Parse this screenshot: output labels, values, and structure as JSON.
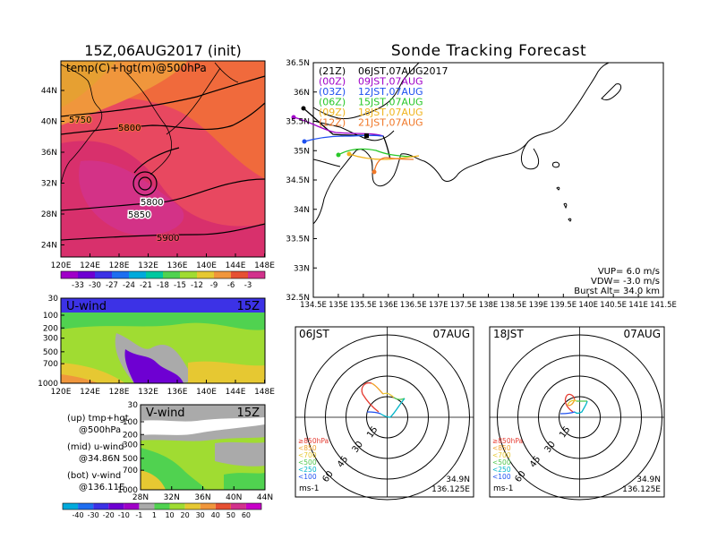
{
  "left_panel": {
    "title": "15Z,06AUG2017 (init)",
    "map_label": "temp(C)+hgt(m)@500hPa",
    "lat_ticks": [
      "44N",
      "40N",
      "36N",
      "32N",
      "28N",
      "24N"
    ],
    "lon_ticks": [
      "120E",
      "124E",
      "128E",
      "132E",
      "136E",
      "140E",
      "144E",
      "148E"
    ],
    "contour_labels": [
      "5750",
      "5800",
      "5800",
      "5850",
      "5900"
    ],
    "temp_colorbar": [
      "-33",
      "-30",
      "-27",
      "-24",
      "-21",
      "-18",
      "-15",
      "-12",
      "-9",
      "-6",
      "-3"
    ],
    "temp_colors": [
      "#a000c8",
      "#6e00d2",
      "#3c32e6",
      "#1e6ef0",
      "#00aadc",
      "#00c8a0",
      "#50d250",
      "#a0dc32",
      "#e6c832",
      "#f0963c",
      "#e65032",
      "#d2328c"
    ]
  },
  "uwind_panel": {
    "label": "U-wind",
    "time": "15Z",
    "p_ticks": [
      "30",
      "100",
      "200",
      "300",
      "500",
      "700",
      "1000"
    ],
    "lon_ticks": [
      "120E",
      "124E",
      "128E",
      "132E",
      "136E",
      "140E",
      "144E",
      "148E"
    ]
  },
  "vwind_panel": {
    "label": "V-wind",
    "time": "15Z",
    "p_ticks": [
      "30",
      "100",
      "200",
      "300",
      "500",
      "700",
      "1000"
    ],
    "lat_ticks": [
      "28N",
      "32N",
      "36N",
      "40N",
      "44N"
    ]
  },
  "legend_text": {
    "up1": "(up)  tmp+hgt",
    "up2": "@500hPa",
    "mid1": "(mid) u-wind",
    "mid2": "@34.86N",
    "bot1": "(bot) v-wind",
    "bot2": "@136.11E"
  },
  "wind_colorbar": {
    "labels": [
      "-40",
      "-30",
      "-20",
      "-10",
      "-1",
      "1",
      "10",
      "20",
      "30",
      "40",
      "50",
      "60"
    ],
    "colors": [
      "#00aadc",
      "#1e6ef0",
      "#3c32e6",
      "#6e00d2",
      "#a000c8",
      "#aaaaaa",
      "#50d250",
      "#a0dc32",
      "#e6c832",
      "#f0963c",
      "#e65032",
      "#d2328c",
      "#c800c8"
    ]
  },
  "track_panel": {
    "title": "Sonde Tracking Forecast",
    "lat_ticks": [
      "36.5N",
      "36N",
      "35.5N",
      "35N",
      "34.5N",
      "34N",
      "33.5N",
      "33N",
      "32.5N"
    ],
    "lon_ticks": [
      "134.5E",
      "135E",
      "135.5E",
      "136E",
      "136.5E",
      "137E",
      "137.5E",
      "138E",
      "138.5E",
      "139E",
      "139.5E",
      "140E",
      "140.5E",
      "141E",
      "141.5E"
    ],
    "launches": [
      {
        "code": "(21Z)",
        "time": "06JST,07AUG2017",
        "color": "#000000"
      },
      {
        "code": "(00Z)",
        "time": "09JST,07AUG",
        "color": "#a000c8"
      },
      {
        "code": "(03Z)",
        "time": "12JST,07AUG",
        "color": "#1e50f0"
      },
      {
        "code": "(06Z)",
        "time": "15JST,07AUG",
        "color": "#28c828"
      },
      {
        "code": "(09Z)",
        "time": "18JST,07AUG",
        "color": "#f0b41e"
      },
      {
        "code": "(12Z)",
        "time": "21JST,07AUG",
        "color": "#f07828"
      }
    ],
    "vup": "VUP=  6.0 m/s",
    "vdw": "VDW= -3.0 m/s",
    "burst": "Burst Alt= 34.0 km"
  },
  "hodographs": [
    {
      "time": "06JST",
      "date": "07AUG",
      "lat": "34.9N",
      "lon": "136.125E",
      "unit": "ms-1",
      "ring_labels": [
        "15",
        "30",
        "45",
        "60"
      ]
    },
    {
      "time": "18JST",
      "date": "07AUG",
      "lat": "34.9N",
      "lon": "136.125E",
      "unit": "ms-1",
      "ring_labels": [
        "15",
        "30",
        "45",
        "60"
      ]
    }
  ],
  "pressure_legend": [
    {
      "label": "≥850hPa",
      "color": "#e63c32"
    },
    {
      "label": "<850",
      "color": "#f0a028"
    },
    {
      "label": "<700",
      "color": "#e6c832"
    },
    {
      "label": "<500",
      "color": "#50c850"
    },
    {
      "label": "<250",
      "color": "#00b4c8"
    },
    {
      "label": "<100",
      "color": "#1e50f0"
    }
  ]
}
